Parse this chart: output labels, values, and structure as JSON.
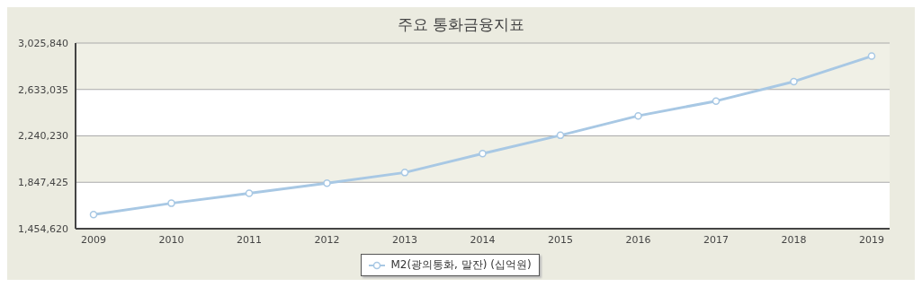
{
  "chart_data": {
    "type": "line",
    "title": "주요 통화금융지표",
    "categories": [
      "2009",
      "2010",
      "2011",
      "2012",
      "2013",
      "2014",
      "2015",
      "2016",
      "2017",
      "2018",
      "2019"
    ],
    "series": [
      {
        "name": "M2(광의통화, 말잔) (십억원)",
        "color": "#a8c8e4",
        "values": [
          1575000,
          1670000,
          1755000,
          1840000,
          1930000,
          2090000,
          2245000,
          2410000,
          2535000,
          2700000,
          2915000
        ]
      }
    ],
    "ylim": [
      1454620,
      3025840
    ],
    "yticks": [
      {
        "value": 1454620,
        "label": "1,454,620"
      },
      {
        "value": 1847425,
        "label": "1,847,425"
      },
      {
        "value": 2240230,
        "label": "2,240,230"
      },
      {
        "value": 2633035,
        "label": "2,633,035"
      },
      {
        "value": 3025840,
        "label": "3,025,840"
      }
    ],
    "grid": "y",
    "legend": "bottom",
    "marker": "circle",
    "line_style": "solid"
  }
}
